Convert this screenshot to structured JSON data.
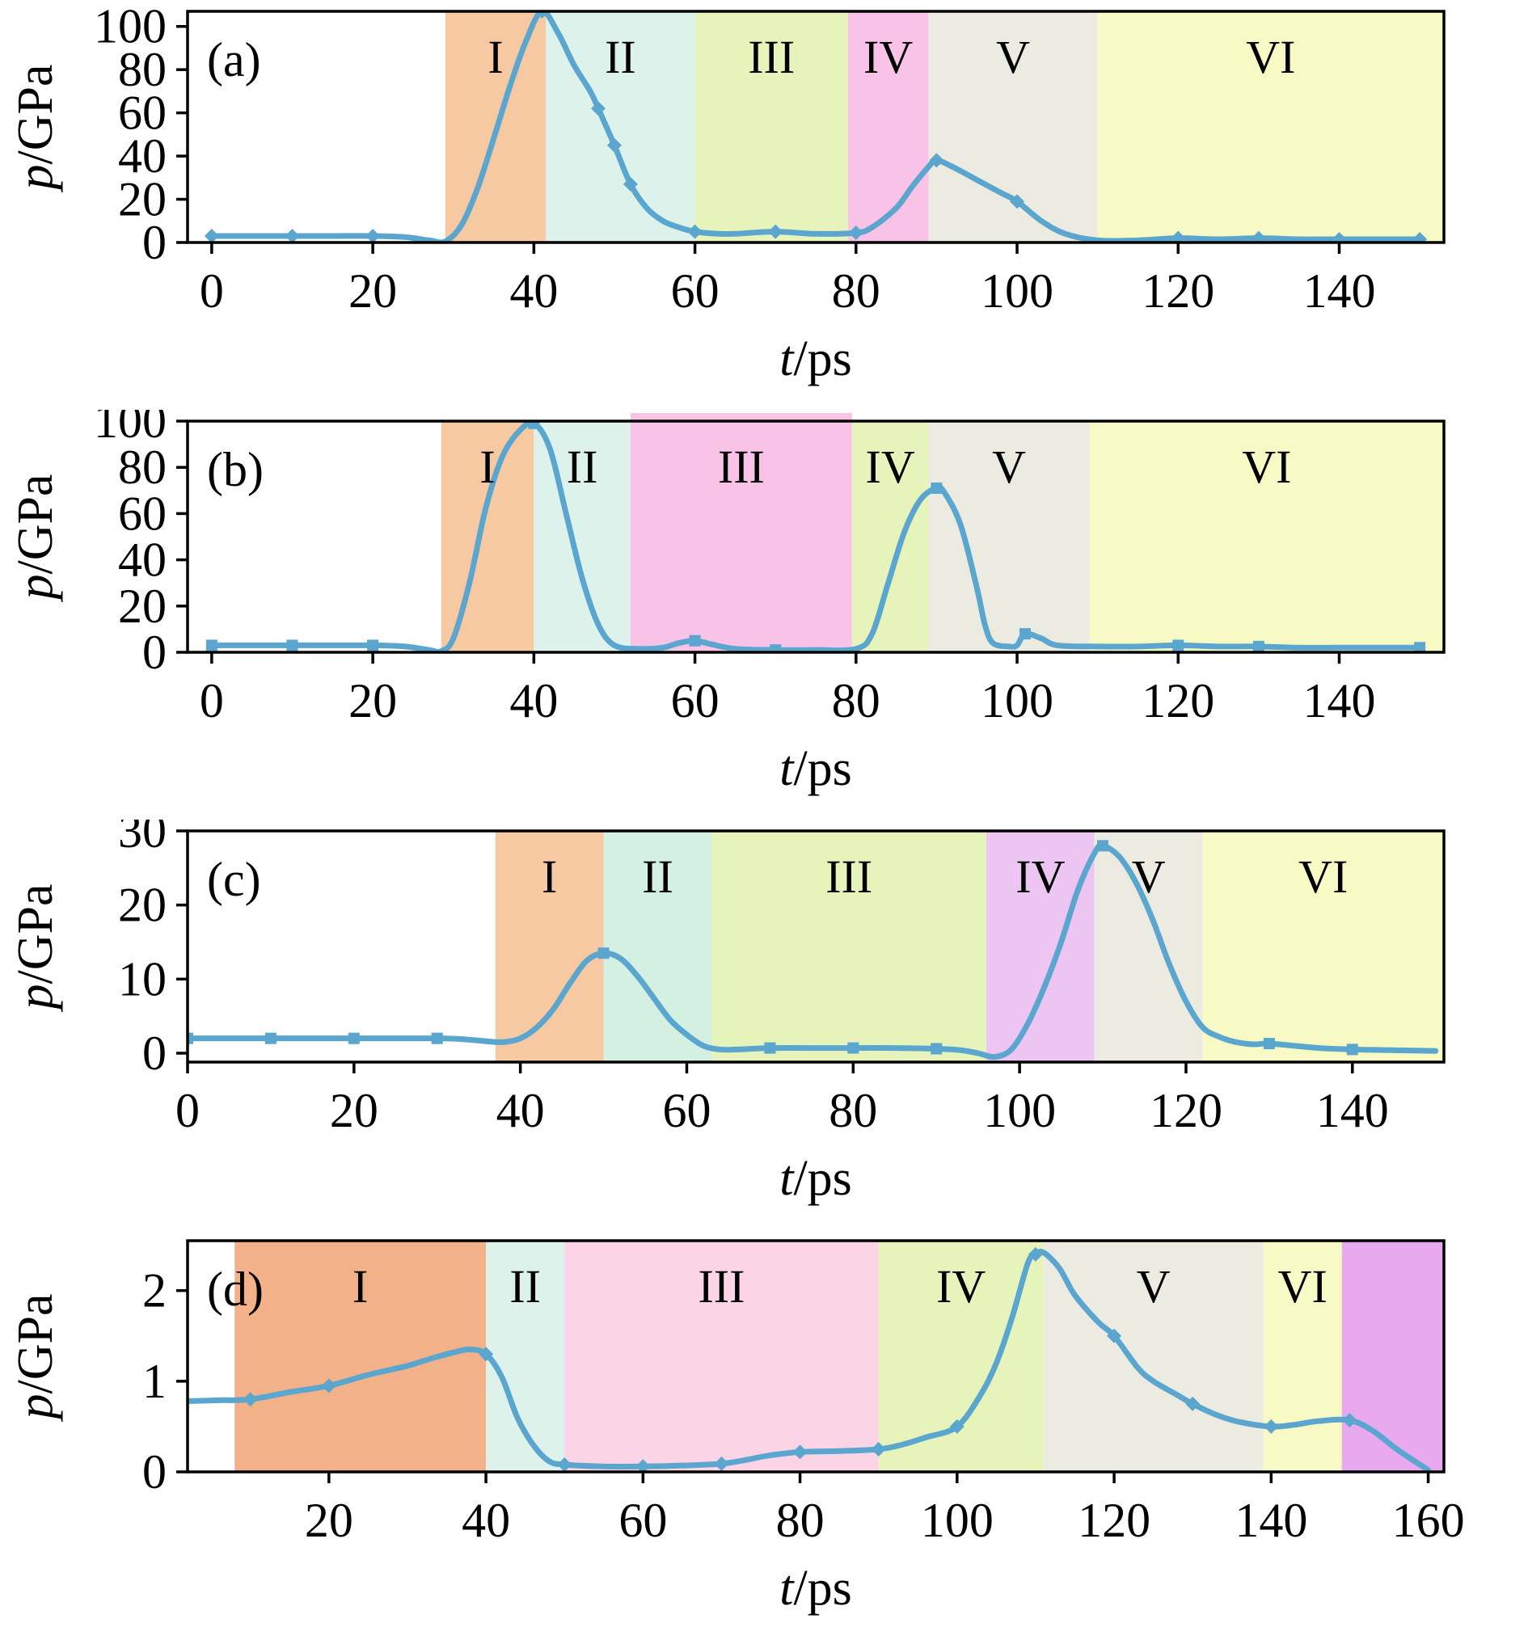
{
  "figure": {
    "description": "Four stacked pressure-time profiles with shaded stage regions I-VI",
    "xlabel": "t/ps",
    "ylabel": "p/GPa"
  },
  "colors": {
    "curve": "#5aa6ce",
    "axis": "#000000",
    "bands": {
      "orange": "#f7c9a3",
      "orange_deep": "#f3b189",
      "cyan": "#ddf2eb",
      "mint": "#d4f0e2",
      "green": "#e6f4bc",
      "pink": "#f9c3e8",
      "pink_light": "#fbd4e6",
      "gray": "#ebebe2",
      "yellow": "#f7fac4",
      "purple": "#ecc5f2",
      "magenta": "#e9a9ef"
    }
  },
  "chart_data": [
    {
      "type": "line",
      "id": "a",
      "panel_label": "(a)",
      "xlabel": "t/ps",
      "ylabel": "p/GPa",
      "xlim": [
        -3,
        153
      ],
      "ylim": [
        0,
        107
      ],
      "xticks": [
        0,
        20,
        40,
        60,
        80,
        100,
        120,
        140
      ],
      "yticks": [
        0,
        20,
        40,
        60,
        80,
        100
      ],
      "marker": "diamond",
      "regions": [
        {
          "label": "I",
          "from": 29,
          "to": 41.5,
          "color": "orange"
        },
        {
          "label": "II",
          "from": 41.5,
          "to": 60,
          "color": "cyan"
        },
        {
          "label": "III",
          "from": 60,
          "to": 79,
          "color": "green"
        },
        {
          "label": "IV",
          "from": 79,
          "to": 89,
          "color": "pink"
        },
        {
          "label": "V",
          "from": 89,
          "to": 110,
          "color": "gray"
        },
        {
          "label": "VI",
          "from": 110,
          "to": 153,
          "color": "yellow"
        }
      ],
      "x": [
        0,
        5,
        10,
        15,
        20,
        24,
        27,
        29,
        31,
        33,
        35,
        37,
        39,
        41,
        43,
        45,
        47,
        48,
        50,
        52,
        54,
        56,
        58,
        60,
        63,
        65,
        70,
        75,
        80,
        82,
        85,
        87,
        89,
        90,
        92,
        95,
        98,
        100,
        103,
        106,
        110,
        115,
        120,
        125,
        130,
        135,
        140,
        145,
        150
      ],
      "y": [
        3,
        3,
        3,
        3,
        3,
        2.5,
        1,
        0.5,
        8,
        25,
        48,
        72,
        93,
        107,
        97,
        82,
        70,
        62,
        45,
        27,
        16,
        10,
        7,
        5,
        4,
        4,
        5,
        4,
        4.5,
        7,
        16,
        26,
        35,
        38,
        35,
        29,
        23,
        19,
        10,
        4,
        1,
        1,
        2,
        1.5,
        2,
        1.5,
        1.5,
        1.5,
        1.5
      ],
      "marker_points": [
        [
          0,
          3
        ],
        [
          10,
          3
        ],
        [
          20,
          3
        ],
        [
          41,
          107
        ],
        [
          48,
          62
        ],
        [
          50,
          45
        ],
        [
          52,
          27
        ],
        [
          60,
          5
        ],
        [
          70,
          5
        ],
        [
          80,
          4.5
        ],
        [
          90,
          38
        ],
        [
          100,
          19
        ],
        [
          120,
          2
        ],
        [
          130,
          2
        ],
        [
          140,
          1.5
        ],
        [
          150,
          1.5
        ]
      ]
    },
    {
      "type": "line",
      "id": "b",
      "panel_label": "(b)",
      "xlabel": "t/ps",
      "ylabel": "p/GPa",
      "xlim": [
        -3,
        153
      ],
      "ylim": [
        0,
        100
      ],
      "xticks": [
        0,
        20,
        40,
        60,
        80,
        100,
        120,
        140
      ],
      "yticks": [
        0,
        20,
        40,
        60,
        80,
        100
      ],
      "marker": "square",
      "regions": [
        {
          "label": "I",
          "from": 28.5,
          "to": 40,
          "color": "orange"
        },
        {
          "label": "II",
          "from": 40,
          "to": 52,
          "color": "cyan"
        },
        {
          "label": "III",
          "from": 52,
          "to": 79.5,
          "color": "pink",
          "over": 10
        },
        {
          "label": "IV",
          "from": 79.5,
          "to": 89,
          "color": "green"
        },
        {
          "label": "V",
          "from": 89,
          "to": 109,
          "color": "gray"
        },
        {
          "label": "VI",
          "from": 109,
          "to": 153,
          "color": "yellow"
        }
      ],
      "x": [
        0,
        5,
        10,
        15,
        20,
        24,
        27,
        28.5,
        30,
        32,
        34,
        36,
        38,
        40,
        42,
        44,
        46,
        48,
        50,
        53,
        56,
        58,
        60,
        62,
        65,
        70,
        75,
        80,
        82,
        84,
        86,
        88,
        90,
        91,
        93,
        95,
        96,
        97,
        99,
        100,
        101,
        103,
        105,
        110,
        115,
        120,
        125,
        130,
        135,
        140,
        145,
        150
      ],
      "y": [
        3,
        3,
        3,
        3,
        3,
        2.5,
        1,
        0.5,
        6,
        30,
        62,
        84,
        95,
        99,
        88,
        60,
        32,
        12,
        3,
        1.5,
        2,
        4,
        5,
        3.5,
        1.5,
        1,
        1,
        1.5,
        8,
        30,
        52,
        66,
        71,
        69,
        55,
        28,
        12,
        4,
        2.5,
        3,
        8,
        6,
        3,
        2.5,
        2.5,
        3,
        2.5,
        2.5,
        2,
        2,
        2,
        2
      ],
      "marker_points": [
        [
          0,
          3
        ],
        [
          10,
          3
        ],
        [
          20,
          3
        ],
        [
          40,
          99
        ],
        [
          60,
          5
        ],
        [
          70,
          1
        ],
        [
          90,
          71
        ],
        [
          101,
          8
        ],
        [
          120,
          3
        ],
        [
          130,
          2.5
        ],
        [
          150,
          2
        ]
      ]
    },
    {
      "type": "line",
      "id": "c",
      "panel_label": "(c)",
      "xlabel": "t/ps",
      "ylabel": "p/GPa",
      "xlim": [
        0,
        151
      ],
      "ylim": [
        -1.2,
        30
      ],
      "xticks": [
        0,
        20,
        40,
        60,
        80,
        100,
        120,
        140
      ],
      "yticks": [
        0,
        10,
        20,
        30
      ],
      "marker": "square",
      "regions": [
        {
          "label": "I",
          "from": 37,
          "to": 50,
          "color": "orange"
        },
        {
          "label": "II",
          "from": 50,
          "to": 63,
          "color": "mint"
        },
        {
          "label": "III",
          "from": 63,
          "to": 96,
          "color": "green"
        },
        {
          "label": "IV",
          "from": 96,
          "to": 109,
          "color": "purple"
        },
        {
          "label": "V",
          "from": 109,
          "to": 122,
          "color": "gray"
        },
        {
          "label": "VI",
          "from": 122,
          "to": 151,
          "color": "yellow"
        }
      ],
      "x": [
        0,
        5,
        10,
        15,
        20,
        25,
        30,
        33,
        36,
        38,
        40,
        42,
        44,
        46,
        48,
        50,
        52,
        54,
        56,
        58,
        60,
        62,
        64,
        66,
        70,
        75,
        80,
        85,
        90,
        93,
        95,
        97,
        99,
        101,
        103,
        105,
        107,
        109,
        110,
        112,
        114,
        116,
        118,
        120,
        122,
        124,
        126,
        128,
        130,
        133,
        136,
        140,
        145,
        150
      ],
      "y": [
        2,
        2,
        2,
        2,
        2,
        2,
        2,
        1.9,
        1.6,
        1.5,
        2,
        3.5,
        6,
        9.5,
        12.5,
        13.5,
        12.8,
        10.5,
        7.5,
        4.5,
        2.5,
        1,
        0.5,
        0.5,
        0.7,
        0.7,
        0.7,
        0.7,
        0.6,
        0.4,
        0,
        -0.5,
        0.5,
        4,
        9,
        15,
        22,
        27,
        28,
        26.5,
        23,
        18,
        12,
        7,
        3.5,
        2.2,
        1.5,
        1.2,
        1.3,
        1,
        0.7,
        0.5,
        0.4,
        0.3
      ],
      "marker_points": [
        [
          0,
          2
        ],
        [
          10,
          2
        ],
        [
          20,
          2
        ],
        [
          30,
          2
        ],
        [
          50,
          13.5
        ],
        [
          70,
          0.7
        ],
        [
          80,
          0.7
        ],
        [
          90,
          0.6
        ],
        [
          110,
          28
        ],
        [
          130,
          1.3
        ],
        [
          140,
          0.5
        ]
      ]
    },
    {
      "type": "line",
      "id": "d",
      "panel_label": "(d)",
      "xlabel": "t/ps",
      "ylabel": "p/GPa",
      "xlim": [
        2,
        162
      ],
      "ylim": [
        0,
        2.55
      ],
      "xticks": [
        20,
        40,
        60,
        80,
        100,
        120,
        140,
        160
      ],
      "yticks": [
        0,
        1,
        2
      ],
      "marker": "diamond",
      "regions": [
        {
          "label": "I",
          "from": 8,
          "to": 40,
          "color": "orange_deep"
        },
        {
          "label": "II",
          "from": 40,
          "to": 50,
          "color": "cyan"
        },
        {
          "label": "III",
          "from": 50,
          "to": 90,
          "color": "pink_light"
        },
        {
          "label": "IV",
          "from": 90,
          "to": 111,
          "color": "green"
        },
        {
          "label": "V",
          "from": 111,
          "to": 139,
          "color": "gray"
        },
        {
          "label": "VI",
          "from": 139,
          "to": 149,
          "color": "yellow"
        },
        {
          "label": "",
          "from": 149,
          "to": 162,
          "color": "magenta"
        }
      ],
      "x": [
        2,
        6,
        10,
        15,
        20,
        25,
        30,
        33,
        36,
        38,
        40,
        42,
        44,
        46,
        48,
        50,
        55,
        60,
        65,
        70,
        73,
        76,
        80,
        85,
        90,
        93,
        96,
        100,
        103,
        105,
        107,
        109,
        110,
        111,
        113,
        115,
        118,
        120,
        123,
        125,
        128,
        130,
        133,
        136,
        140,
        143,
        146,
        150,
        153,
        156,
        160
      ],
      "y": [
        0.78,
        0.79,
        0.8,
        0.88,
        0.95,
        1.07,
        1.17,
        1.25,
        1.32,
        1.35,
        1.3,
        1.05,
        0.6,
        0.3,
        0.12,
        0.08,
        0.06,
        0.06,
        0.07,
        0.09,
        0.13,
        0.18,
        0.22,
        0.23,
        0.25,
        0.3,
        0.38,
        0.5,
        0.85,
        1.2,
        1.7,
        2.3,
        2.4,
        2.42,
        2.25,
        1.95,
        1.65,
        1.5,
        1.15,
        1.0,
        0.85,
        0.75,
        0.63,
        0.55,
        0.5,
        0.52,
        0.56,
        0.57,
        0.45,
        0.25,
        0.02
      ],
      "marker_points": [
        [
          10,
          0.8
        ],
        [
          20,
          0.95
        ],
        [
          40,
          1.3
        ],
        [
          50,
          0.08
        ],
        [
          60,
          0.06
        ],
        [
          70,
          0.09
        ],
        [
          80,
          0.22
        ],
        [
          90,
          0.25
        ],
        [
          100,
          0.5
        ],
        [
          110,
          2.4
        ],
        [
          120,
          1.5
        ],
        [
          130,
          0.75
        ],
        [
          140,
          0.5
        ],
        [
          150,
          0.57
        ]
      ]
    }
  ]
}
